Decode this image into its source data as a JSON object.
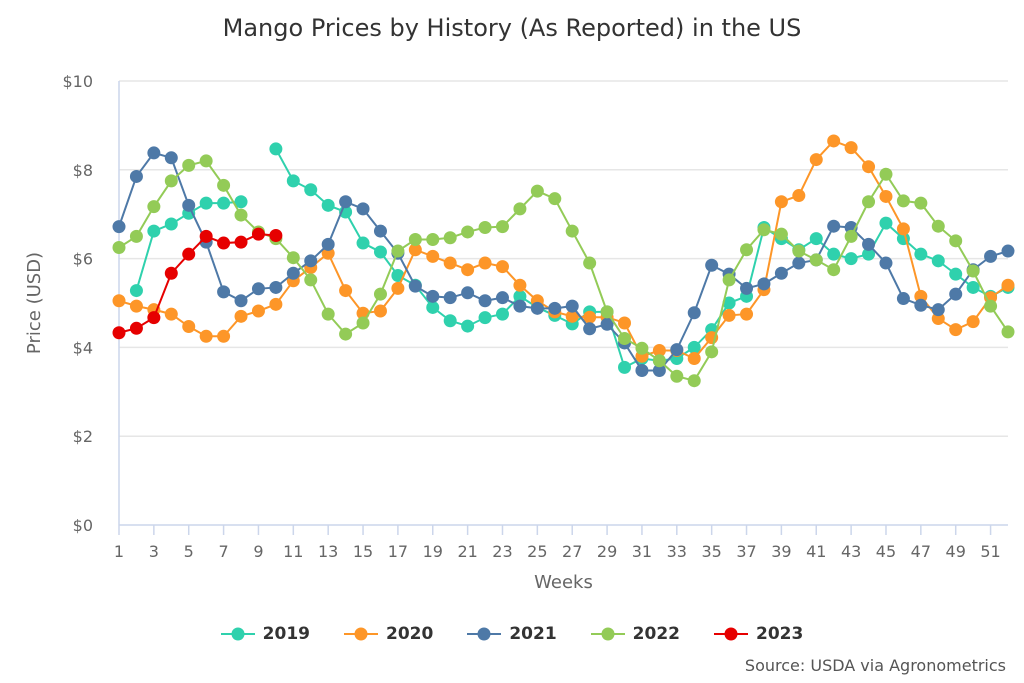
{
  "chart_data": {
    "type": "line",
    "title": "Mango Prices by History (As Reported) in the US",
    "xlabel": "Weeks",
    "ylabel": "Price (USD)",
    "ylim": [
      0,
      10
    ],
    "xlim": [
      1,
      52
    ],
    "y_ticks": [
      "$0",
      "$2",
      "$4",
      "$6",
      "$8",
      "$10"
    ],
    "x_ticks": [
      "1",
      "3",
      "5",
      "7",
      "9",
      "11",
      "13",
      "15",
      "17",
      "19",
      "21",
      "23",
      "25",
      "27",
      "29",
      "31",
      "33",
      "35",
      "37",
      "39",
      "41",
      "43",
      "45",
      "47",
      "49",
      "51"
    ],
    "grid": "horizontal",
    "legend": "bottom",
    "source": "Source: USDA via Agronometrics",
    "series": [
      {
        "name": "2019",
        "color": "#2fd1ad",
        "values": [
          null,
          5.28,
          6.62,
          6.78,
          7.02,
          7.25,
          7.25,
          7.28,
          null,
          8.47,
          7.75,
          7.55,
          7.2,
          7.05,
          6.35,
          6.15,
          5.62,
          5.4,
          4.9,
          4.6,
          4.48,
          4.67,
          4.75,
          5.15,
          4.9,
          4.72,
          4.53,
          4.8,
          4.8,
          3.55,
          3.75,
          3.7,
          3.75,
          4.0,
          4.4,
          5.0,
          5.15,
          6.7,
          6.45,
          6.2,
          6.45,
          6.1,
          6.0,
          6.1,
          6.8,
          6.45,
          6.1,
          5.95,
          5.65,
          5.35,
          5.15,
          5.35
        ]
      },
      {
        "name": "2020",
        "color": "#fd9628",
        "values": [
          5.05,
          4.93,
          4.85,
          4.75,
          4.47,
          4.25,
          4.25,
          4.7,
          4.82,
          4.97,
          5.5,
          5.8,
          6.12,
          5.28,
          4.77,
          4.82,
          5.33,
          6.2,
          6.05,
          5.9,
          5.75,
          5.9,
          5.82,
          5.4,
          5.05,
          4.8,
          4.7,
          4.68,
          4.68,
          4.55,
          3.8,
          3.93,
          3.93,
          3.75,
          4.22,
          4.72,
          4.75,
          5.3,
          7.28,
          7.42,
          8.23,
          8.65,
          8.5,
          8.07,
          7.4,
          6.67,
          5.15,
          4.65,
          4.4,
          4.58,
          5.12,
          5.4
        ]
      },
      {
        "name": "2021",
        "color": "#4e79a7",
        "values": [
          6.72,
          7.85,
          8.38,
          8.27,
          7.2,
          6.37,
          5.25,
          5.05,
          5.32,
          5.35,
          5.67,
          5.95,
          6.32,
          7.28,
          7.12,
          6.62,
          6.12,
          5.38,
          5.15,
          5.12,
          5.23,
          5.05,
          5.12,
          4.93,
          4.88,
          4.88,
          4.93,
          4.42,
          4.52,
          4.1,
          3.48,
          3.48,
          3.95,
          4.78,
          5.85,
          5.65,
          5.33,
          5.43,
          5.67,
          5.9,
          5.97,
          6.73,
          6.7,
          6.32,
          5.9,
          5.1,
          4.95,
          4.85,
          5.2,
          5.75,
          6.05,
          6.17
        ]
      },
      {
        "name": "2022",
        "color": "#93cb57",
        "values": [
          6.25,
          6.5,
          7.17,
          7.75,
          8.1,
          8.2,
          7.65,
          6.98,
          6.6,
          6.45,
          6.02,
          5.52,
          4.75,
          4.3,
          4.55,
          5.2,
          6.17,
          6.43,
          6.43,
          6.47,
          6.6,
          6.7,
          6.72,
          7.12,
          7.52,
          7.35,
          6.62,
          5.9,
          4.8,
          4.2,
          3.98,
          3.7,
          3.35,
          3.25,
          3.9,
          5.52,
          6.2,
          6.65,
          6.55,
          6.17,
          5.97,
          5.75,
          6.5,
          7.28,
          7.9,
          7.3,
          7.25,
          6.73,
          6.4,
          5.72,
          4.93,
          4.35
        ]
      },
      {
        "name": "2023",
        "color": "#e60000",
        "values": [
          4.33,
          4.43,
          4.67,
          5.67,
          6.1,
          6.5,
          6.35,
          6.37,
          6.55,
          6.52
        ]
      }
    ]
  }
}
